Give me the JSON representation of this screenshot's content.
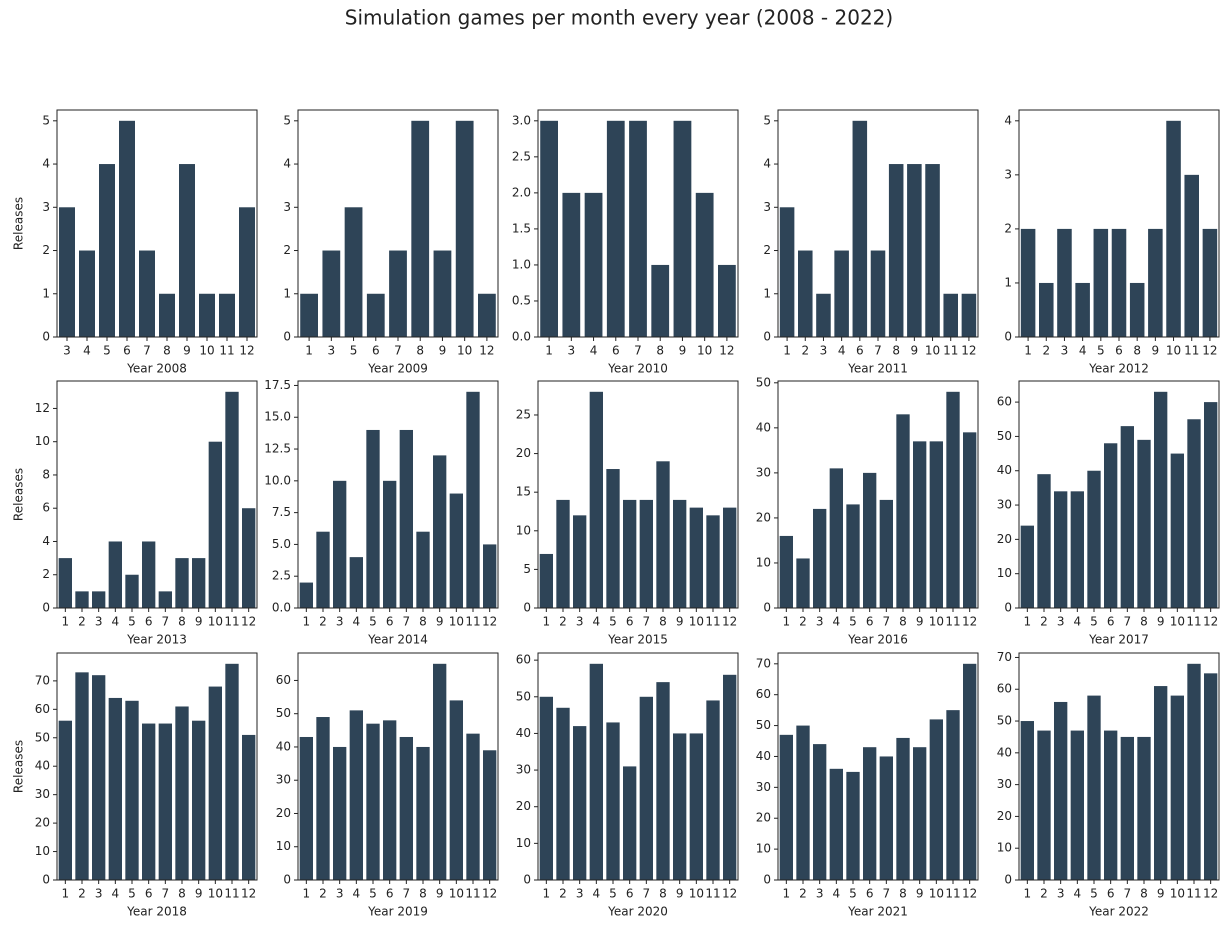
{
  "title": "Simulation games per month every year (2008 - 2022)",
  "chart_data": [
    {
      "type": "bar",
      "xlabel": "Year 2008",
      "ylabel": "Releases",
      "color": "#2e4457",
      "categories": [
        "3",
        "4",
        "5",
        "6",
        "7",
        "8",
        "9",
        "10",
        "11",
        "12"
      ],
      "values": [
        3,
        2,
        4,
        5,
        2,
        1,
        4,
        1,
        1,
        3
      ],
      "ylim": [
        0,
        5.25
      ],
      "yticks": [
        0,
        1,
        2,
        3,
        4,
        5
      ]
    },
    {
      "type": "bar",
      "xlabel": "Year 2009",
      "color": "#2e4457",
      "categories": [
        "1",
        "3",
        "5",
        "6",
        "7",
        "8",
        "9",
        "10",
        "12"
      ],
      "values": [
        1,
        2,
        3,
        1,
        2,
        5,
        2,
        5,
        1
      ],
      "ylim": [
        0,
        5.25
      ],
      "yticks": [
        0,
        1,
        2,
        3,
        4,
        5
      ]
    },
    {
      "type": "bar",
      "xlabel": "Year 2010",
      "color": "#2e4457",
      "categories": [
        "1",
        "3",
        "4",
        "6",
        "7",
        "8",
        "9",
        "10",
        "12"
      ],
      "values": [
        3,
        2,
        2,
        3,
        3,
        1,
        3,
        2,
        1
      ],
      "ylim": [
        0,
        3.15
      ],
      "yticks": [
        {
          "value": 0,
          "label": "0.0"
        },
        0.5,
        {
          "value": 1,
          "label": "1.0"
        },
        1.5,
        {
          "value": 2,
          "label": "2.0"
        },
        2.5,
        {
          "value": 3,
          "label": "3.0"
        }
      ]
    },
    {
      "type": "bar",
      "xlabel": "Year 2011",
      "color": "#2e4457",
      "categories": [
        "1",
        "2",
        "3",
        "4",
        "6",
        "7",
        "8",
        "9",
        "10",
        "11",
        "12"
      ],
      "values": [
        3,
        2,
        1,
        2,
        5,
        2,
        4,
        4,
        4,
        1,
        1
      ],
      "ylim": [
        0,
        5.25
      ],
      "yticks": [
        0,
        1,
        2,
        3,
        4,
        5
      ]
    },
    {
      "type": "bar",
      "xlabel": "Year 2012",
      "color": "#2e4457",
      "categories": [
        "1",
        "2",
        "3",
        "4",
        "5",
        "6",
        "8",
        "9",
        "10",
        "11",
        "12"
      ],
      "values": [
        2,
        1,
        2,
        1,
        2,
        2,
        1,
        2,
        4,
        3,
        2
      ],
      "ylim": [
        0,
        4.2
      ],
      "yticks": [
        0,
        1,
        2,
        3,
        4
      ]
    },
    {
      "type": "bar",
      "xlabel": "Year 2013",
      "ylabel": "Releases",
      "color": "#2e4457",
      "categories": [
        "1",
        "2",
        "3",
        "4",
        "5",
        "6",
        "7",
        "8",
        "9",
        "10",
        "11",
        "12"
      ],
      "values": [
        3,
        1,
        1,
        4,
        2,
        4,
        1,
        3,
        3,
        10,
        13,
        6
      ],
      "ylim": [
        0,
        13.65
      ],
      "yticks": [
        0,
        2,
        4,
        6,
        8,
        10,
        12
      ]
    },
    {
      "type": "bar",
      "xlabel": "Year 2014",
      "color": "#2e4457",
      "categories": [
        "1",
        "2",
        "3",
        "4",
        "5",
        "6",
        "7",
        "8",
        "9",
        "10",
        "11",
        "12"
      ],
      "values": [
        2,
        6,
        10,
        4,
        14,
        10,
        14,
        6,
        12,
        9,
        17,
        5
      ],
      "ylim": [
        0,
        17.85
      ],
      "yticks": [
        {
          "value": 0,
          "label": "0.0"
        },
        2.5,
        {
          "value": 5,
          "label": "5.0"
        },
        7.5,
        {
          "value": 10,
          "label": "10.0"
        },
        12.5,
        {
          "value": 15,
          "label": "15.0"
        },
        17.5
      ]
    },
    {
      "type": "bar",
      "xlabel": "Year 2015",
      "color": "#2e4457",
      "categories": [
        "1",
        "2",
        "3",
        "4",
        "5",
        "6",
        "7",
        "8",
        "9",
        "10",
        "11",
        "12"
      ],
      "values": [
        7,
        14,
        12,
        28,
        18,
        14,
        14,
        19,
        14,
        13,
        12,
        13
      ],
      "ylim": [
        0,
        29.4
      ],
      "yticks": [
        0,
        5,
        10,
        15,
        20,
        25
      ]
    },
    {
      "type": "bar",
      "xlabel": "Year 2016",
      "color": "#2e4457",
      "categories": [
        "1",
        "2",
        "3",
        "4",
        "5",
        "6",
        "7",
        "8",
        "9",
        "10",
        "11",
        "12"
      ],
      "values": [
        16,
        11,
        22,
        31,
        23,
        30,
        24,
        43,
        37,
        37,
        48,
        39
      ],
      "ylim": [
        0,
        50.4
      ],
      "yticks": [
        0,
        10,
        20,
        30,
        40,
        50
      ]
    },
    {
      "type": "bar",
      "xlabel": "Year 2017",
      "color": "#2e4457",
      "categories": [
        "1",
        "2",
        "3",
        "4",
        "5",
        "6",
        "7",
        "8",
        "9",
        "10",
        "11",
        "12"
      ],
      "values": [
        24,
        39,
        34,
        34,
        40,
        48,
        53,
        49,
        63,
        45,
        55,
        60
      ],
      "ylim": [
        0,
        66.15
      ],
      "yticks": [
        0,
        10,
        20,
        30,
        40,
        50,
        60
      ]
    },
    {
      "type": "bar",
      "xlabel": "Year 2018",
      "ylabel": "Releases",
      "color": "#2e4457",
      "categories": [
        "1",
        "2",
        "3",
        "4",
        "5",
        "6",
        "7",
        "8",
        "9",
        "10",
        "11",
        "12"
      ],
      "values": [
        56,
        73,
        72,
        64,
        63,
        55,
        55,
        61,
        56,
        68,
        76,
        51
      ],
      "ylim": [
        0,
        79.8
      ],
      "yticks": [
        0,
        10,
        20,
        30,
        40,
        50,
        60,
        70
      ]
    },
    {
      "type": "bar",
      "xlabel": "Year 2019",
      "color": "#2e4457",
      "categories": [
        "1",
        "2",
        "3",
        "4",
        "5",
        "6",
        "7",
        "8",
        "9",
        "10",
        "11",
        "12"
      ],
      "values": [
        43,
        49,
        40,
        51,
        47,
        48,
        43,
        40,
        65,
        54,
        44,
        39
      ],
      "ylim": [
        0,
        68.25
      ],
      "yticks": [
        0,
        10,
        20,
        30,
        40,
        50,
        60
      ]
    },
    {
      "type": "bar",
      "xlabel": "Year 2020",
      "color": "#2e4457",
      "categories": [
        "1",
        "2",
        "3",
        "4",
        "5",
        "6",
        "7",
        "8",
        "9",
        "10",
        "11",
        "12"
      ],
      "values": [
        50,
        47,
        42,
        59,
        43,
        31,
        50,
        54,
        40,
        40,
        49,
        56
      ],
      "ylim": [
        0,
        61.95
      ],
      "yticks": [
        0,
        10,
        20,
        30,
        40,
        50,
        60
      ]
    },
    {
      "type": "bar",
      "xlabel": "Year 2021",
      "color": "#2e4457",
      "categories": [
        "1",
        "2",
        "3",
        "4",
        "5",
        "6",
        "7",
        "8",
        "9",
        "10",
        "11",
        "12"
      ],
      "values": [
        47,
        50,
        44,
        36,
        35,
        43,
        40,
        46,
        43,
        52,
        55,
        70
      ],
      "ylim": [
        0,
        73.5
      ],
      "yticks": [
        0,
        10,
        20,
        30,
        40,
        50,
        60,
        70
      ]
    },
    {
      "type": "bar",
      "xlabel": "Year 2022",
      "color": "#2e4457",
      "categories": [
        "1",
        "2",
        "3",
        "4",
        "5",
        "6",
        "7",
        "8",
        "9",
        "10",
        "11",
        "12"
      ],
      "values": [
        50,
        47,
        56,
        47,
        58,
        47,
        45,
        45,
        61,
        58,
        68,
        65
      ],
      "ylim": [
        0,
        71.4
      ],
      "yticks": [
        0,
        10,
        20,
        30,
        40,
        50,
        60,
        70
      ]
    }
  ]
}
